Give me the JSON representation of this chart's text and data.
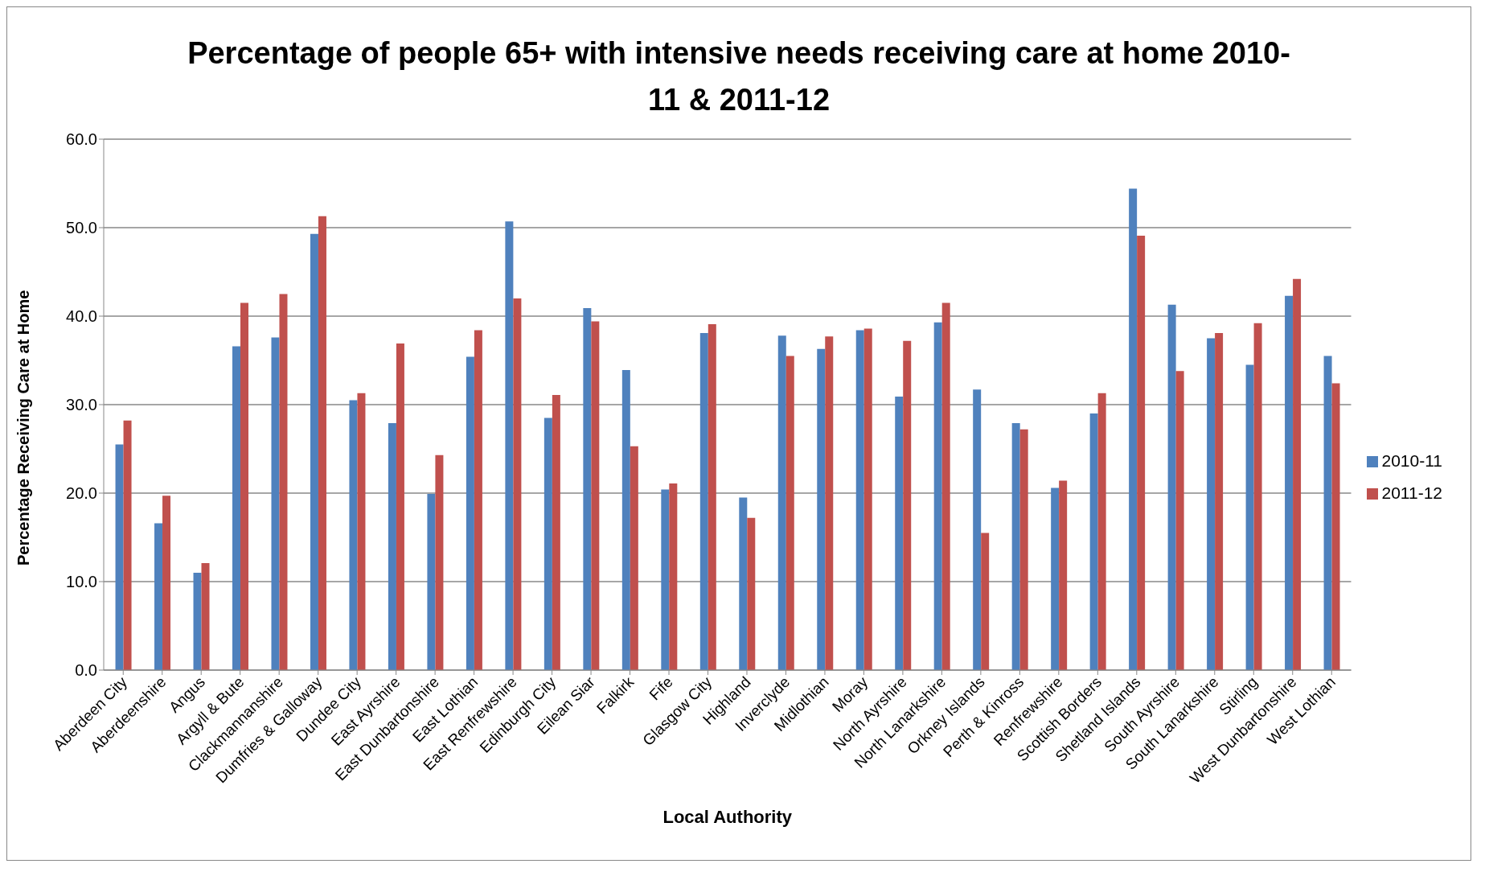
{
  "chart_data": {
    "type": "bar",
    "title": "Percentage of people 65+ with intensive needs receiving care at home 2010-11 & 2011-12",
    "xlabel": "Local Authority",
    "ylabel": "Percentage Receiving Care at Home",
    "categories": [
      "Aberdeen City",
      "Aberdeenshire",
      "Angus",
      "Argyll & Bute",
      "Clackmannanshire",
      "Dumfries & Galloway",
      "Dundee City",
      "East Ayrshire",
      "East Dunbartonshire",
      "East Lothian",
      "East Renfrewshire",
      "Edinburgh City",
      "Eilean Siar",
      "Falkirk",
      "Fife",
      "Glasgow City",
      "Highland",
      "Inverclyde",
      "Midlothian",
      "Moray",
      "North Ayrshire",
      "North Lanarkshire",
      "Orkney Islands",
      "Perth & Kinross",
      "Renfrewshire",
      "Scottish Borders",
      "Shetland Islands",
      "South Ayrshire",
      "South Lanarkshire",
      "Stirling",
      "West Dunbartonshire",
      "West Lothian"
    ],
    "series": [
      {
        "name": "2010-11",
        "color": "#4f81bd",
        "values": [
          25.5,
          16.6,
          11.0,
          36.6,
          37.6,
          49.3,
          30.5,
          27.9,
          19.9,
          35.4,
          50.7,
          28.5,
          40.9,
          33.9,
          20.4,
          38.1,
          19.5,
          37.8,
          36.3,
          38.4,
          30.9,
          39.3,
          31.7,
          27.9,
          20.6,
          29.0,
          54.4,
          41.3,
          37.5,
          34.5,
          42.3,
          35.5
        ]
      },
      {
        "name": "2011-12",
        "color": "#c0504d",
        "values": [
          28.2,
          19.7,
          12.1,
          41.5,
          42.5,
          51.3,
          31.3,
          36.9,
          24.3,
          38.4,
          42.0,
          31.1,
          39.4,
          25.3,
          21.1,
          39.1,
          17.2,
          35.5,
          37.7,
          38.6,
          37.2,
          41.5,
          15.5,
          27.2,
          21.4,
          31.3,
          49.1,
          33.8,
          38.1,
          39.2,
          44.2,
          32.4
        ]
      }
    ],
    "ylim": [
      0,
      60
    ],
    "yticks": [
      {
        "value": 0,
        "label": "0.0"
      },
      {
        "value": 10,
        "label": "10.0"
      },
      {
        "value": 20,
        "label": "20.0"
      },
      {
        "value": 30,
        "label": "30.0"
      },
      {
        "value": 40,
        "label": "40.0"
      },
      {
        "value": 50,
        "label": "50.0"
      },
      {
        "value": 60,
        "label": "60.0"
      }
    ],
    "grid": "y",
    "legend": "right"
  }
}
